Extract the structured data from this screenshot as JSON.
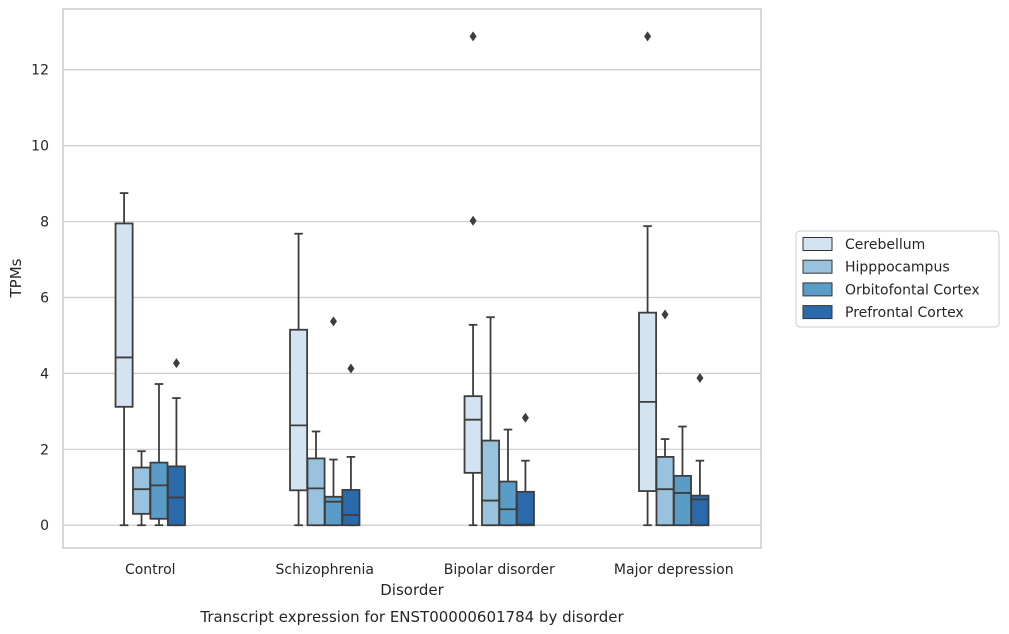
{
  "chart_data": {
    "type": "box",
    "title": "",
    "caption": "Transcript expression for ENST00000601784 by disorder",
    "xlabel": "Disorder",
    "ylabel": "TPMs",
    "ylim": [
      -0.6,
      13.6
    ],
    "yticks": [
      0,
      2,
      4,
      6,
      8,
      10,
      12
    ],
    "grid": "horizontal",
    "legend_position": "right",
    "categories": [
      "Control",
      "Schizophrenia",
      "Bipolar disorder",
      "Major depression"
    ],
    "series": [
      {
        "name": "Cerebellum",
        "color": "#d4e3f2",
        "boxes": [
          {
            "whislo": 0,
            "q1": 3.12,
            "med": 4.42,
            "q3": 7.95,
            "whishi": 8.75,
            "fliers": []
          },
          {
            "whislo": 0,
            "q1": 0.92,
            "med": 2.63,
            "q3": 5.15,
            "whishi": 7.68,
            "fliers": []
          },
          {
            "whislo": 0,
            "q1": 1.38,
            "med": 2.78,
            "q3": 3.4,
            "whishi": 5.28,
            "fliers": [
              8.02,
              12.88
            ]
          },
          {
            "whislo": 0,
            "q1": 0.9,
            "med": 3.25,
            "q3": 5.6,
            "whishi": 7.88,
            "fliers": [
              12.88
            ]
          }
        ]
      },
      {
        "name": "Hipppocampus",
        "color": "#98c2dd",
        "boxes": [
          {
            "whislo": 0,
            "q1": 0.3,
            "med": 0.95,
            "q3": 1.52,
            "whishi": 1.95,
            "fliers": []
          },
          {
            "whislo": 0,
            "q1": 0,
            "med": 0.97,
            "q3": 1.76,
            "whishi": 2.47,
            "fliers": []
          },
          {
            "whislo": 0,
            "q1": 0,
            "med": 0.65,
            "q3": 2.23,
            "whishi": 5.48,
            "fliers": []
          },
          {
            "whislo": 0,
            "q1": 0,
            "med": 0.95,
            "q3": 1.8,
            "whishi": 2.27,
            "fliers": [
              5.55
            ]
          }
        ]
      },
      {
        "name": "Orbitofontal Cortex",
        "color": "#5a9cc8",
        "boxes": [
          {
            "whislo": 0,
            "q1": 0.17,
            "med": 1.05,
            "q3": 1.65,
            "whishi": 3.72,
            "fliers": []
          },
          {
            "whislo": 0,
            "q1": 0,
            "med": 0.62,
            "q3": 0.75,
            "whishi": 1.73,
            "fliers": [
              5.37
            ]
          },
          {
            "whislo": 0,
            "q1": 0,
            "med": 0.42,
            "q3": 1.15,
            "whishi": 2.52,
            "fliers": []
          },
          {
            "whislo": 0,
            "q1": 0,
            "med": 0.85,
            "q3": 1.3,
            "whishi": 2.6,
            "fliers": []
          }
        ]
      },
      {
        "name": "Prefrontal Cortex",
        "color": "#2a6aaa",
        "boxes": [
          {
            "whislo": 0,
            "q1": 0,
            "med": 0.73,
            "q3": 1.55,
            "whishi": 3.35,
            "fliers": [
              4.27
            ]
          },
          {
            "whislo": 0,
            "q1": 0,
            "med": 0.27,
            "q3": 0.93,
            "whishi": 1.8,
            "fliers": [
              4.13
            ]
          },
          {
            "whislo": 0,
            "q1": 0,
            "med": 0.02,
            "q3": 0.88,
            "whishi": 1.7,
            "fliers": [
              2.83
            ]
          },
          {
            "whislo": 0,
            "q1": 0,
            "med": 0.68,
            "q3": 0.78,
            "whishi": 1.7,
            "fliers": [
              3.88
            ]
          }
        ]
      }
    ]
  }
}
